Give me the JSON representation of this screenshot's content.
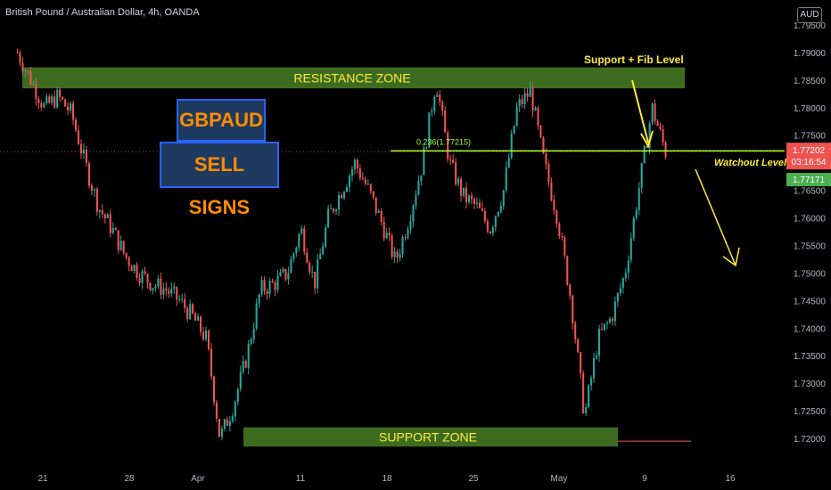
{
  "header": {
    "symbol_title": "British Pound / Australian Dollar, 4h, OANDA",
    "currency": "AUD"
  },
  "annotations": {
    "pair_label": "GBPAUD",
    "signal_label": "SELL SIGNS",
    "resistance_label": "RESISTANCE ZONE",
    "support_label": "SUPPORT ZONE",
    "support_fib_label": "Support + Fib Level",
    "watchout_label": "Watchout Level",
    "fib_label": "0.236(1.77215)"
  },
  "price_tags": {
    "last_price": "1.77202",
    "countdown": "03:16:54",
    "bid_price": "1.77171"
  },
  "colors": {
    "background": "#000000",
    "up_candle": "#26a69a",
    "down_candle": "#ef5350",
    "zone_fill": "#3d6b1f",
    "zone_text": "#ffeb3b",
    "fib_line": "#adff2f",
    "arrow": "#ffeb3b",
    "price_tag_red": "#ef5350",
    "price_tag_green": "#4caf50",
    "axis_text": "#b2b5be"
  },
  "chart_data": {
    "type": "candlestick",
    "title": "British Pound / Australian Dollar, 4h, OANDA",
    "ylim": [
      1.716,
      1.797
    ],
    "y_ticks": [
      "1.79500",
      "1.79000",
      "1.78500",
      "1.78000",
      "1.77500",
      "1.76500",
      "1.76000",
      "1.75500",
      "1.75000",
      "1.74500",
      "1.74000",
      "1.73500",
      "1.73000",
      "1.72500",
      "1.72000"
    ],
    "x_ticks": [
      "21",
      "28",
      "Apr",
      "11",
      "18",
      "25",
      "May",
      "9",
      "16"
    ],
    "resistance_zone": [
      1.7835,
      1.7873
    ],
    "support_zone": [
      1.7185,
      1.722
    ],
    "fib_level": 1.77215,
    "last_price": 1.77202,
    "bid_price": 1.77171,
    "close_path": [
      [
        "21",
        1.79
      ],
      [
        "21",
        1.785
      ],
      [
        "21",
        1.78
      ],
      [
        "21",
        1.782
      ],
      [
        "21",
        1.779
      ],
      [
        "28",
        1.77
      ],
      [
        "28",
        1.762
      ],
      [
        "28",
        1.758
      ],
      [
        "28",
        1.753
      ],
      [
        "28",
        1.75
      ],
      [
        "28",
        1.748
      ],
      [
        "28",
        1.747
      ],
      [
        "Apr",
        1.745
      ],
      [
        "Apr",
        1.742
      ],
      [
        "Apr",
        1.738
      ],
      [
        "Apr",
        1.72
      ],
      [
        "Apr",
        1.726
      ],
      [
        "Apr",
        1.735
      ],
      [
        "11",
        1.747
      ],
      [
        "11",
        1.748
      ],
      [
        "11",
        1.75
      ],
      [
        "11",
        1.758
      ],
      [
        "11",
        1.748
      ],
      [
        "11",
        1.76
      ],
      [
        "18",
        1.765
      ],
      [
        "18",
        1.77
      ],
      [
        "18",
        1.765
      ],
      [
        "18",
        1.759
      ],
      [
        "18",
        1.752
      ],
      [
        "18",
        1.76
      ],
      [
        "25",
        1.77
      ],
      [
        "25",
        1.785
      ],
      [
        "25",
        1.77
      ],
      [
        "25",
        1.764
      ],
      [
        "25",
        1.762
      ],
      [
        "25",
        1.758
      ],
      [
        "May",
        1.765
      ],
      [
        "May",
        1.78
      ],
      [
        "May",
        1.783
      ],
      [
        "May",
        1.77
      ],
      [
        "May",
        1.76
      ],
      [
        "May",
        1.745
      ],
      [
        "May",
        1.724
      ],
      [
        "9",
        1.738
      ],
      [
        "9",
        1.742
      ],
      [
        "9",
        1.75
      ],
      [
        "9",
        1.765
      ],
      [
        "9",
        1.78
      ],
      [
        "9",
        1.772
      ]
    ]
  }
}
